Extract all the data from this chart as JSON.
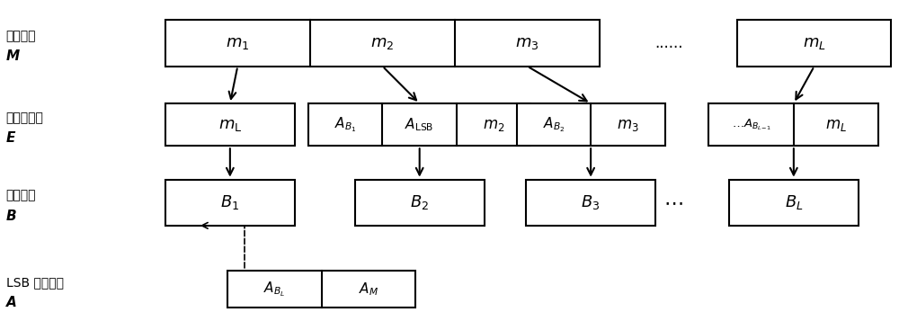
{
  "bg_color": "#ffffff",
  "figsize": [
    10.0,
    3.57
  ],
  "dpi": 100,
  "row1_label1": "秘密信息",
  "row1_label2": "M",
  "row2_label1": "待嵌入序列",
  "row2_label2": "E",
  "row3_label1": "图像小块",
  "row3_label2": "B",
  "row4_label1": "LSB 替换序列",
  "row4_label2": "A"
}
